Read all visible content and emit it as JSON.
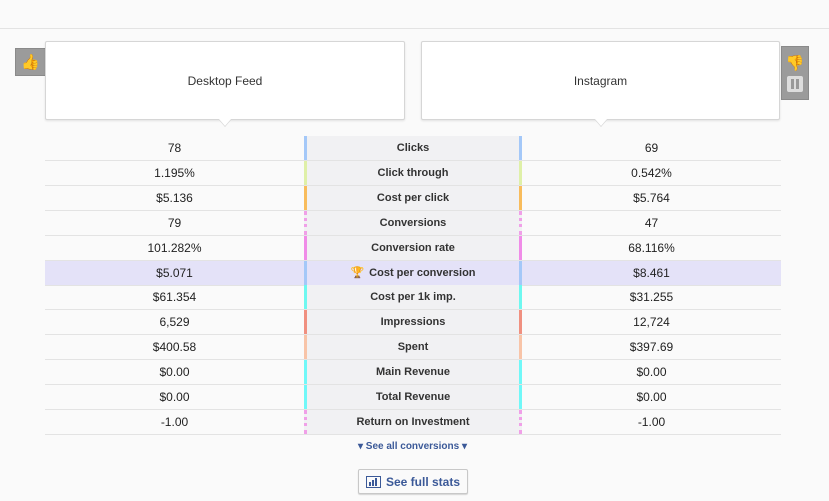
{
  "ads": {
    "left": "Desktop Feed",
    "right": "Instagram"
  },
  "icons": {
    "left": "thumbs-up-icon",
    "right": "thumbs-down-icon",
    "pause": "pause-icon",
    "winner": "trophy-icon",
    "stats": "bar-chart-icon"
  },
  "rows": [
    {
      "metric": "Clicks",
      "left": "78",
      "right": "69",
      "color": "#a4c8f8"
    },
    {
      "metric": "Click through",
      "left": "1.195%",
      "right": "0.542%",
      "color": "#dff0a8"
    },
    {
      "metric": "Cost per click",
      "left": "$5.136",
      "right": "$5.764",
      "color": "#f8bc5c"
    },
    {
      "metric": "Conversions",
      "left": "79",
      "right": "47",
      "color": "dotted"
    },
    {
      "metric": "Conversion rate",
      "left": "101.282%",
      "right": "68.116%",
      "color": "#f08ce8"
    },
    {
      "metric": "Cost per conversion",
      "left": "$5.071",
      "right": "$8.461",
      "color": "#a4c8f8",
      "winner": true
    },
    {
      "metric": "Cost per 1k imp.",
      "left": "$61.354",
      "right": "$31.255",
      "color": "#6ef8f0"
    },
    {
      "metric": "Impressions",
      "left": "6,529",
      "right": "12,724",
      "color": "#f09080"
    },
    {
      "metric": "Spent",
      "left": "$400.58",
      "right": "$397.69",
      "color": "#f8c4a8"
    },
    {
      "metric": "Main Revenue",
      "left": "$0.00",
      "right": "$0.00",
      "color": "#70f8f8"
    },
    {
      "metric": "Total Revenue",
      "left": "$0.00",
      "right": "$0.00",
      "color": "#70f8f8"
    },
    {
      "metric": "Return on Investment",
      "left": "-1.00",
      "right": "-1.00",
      "color": "dotted"
    }
  ],
  "see_all": "See all conversions",
  "full_stats": "See full stats"
}
